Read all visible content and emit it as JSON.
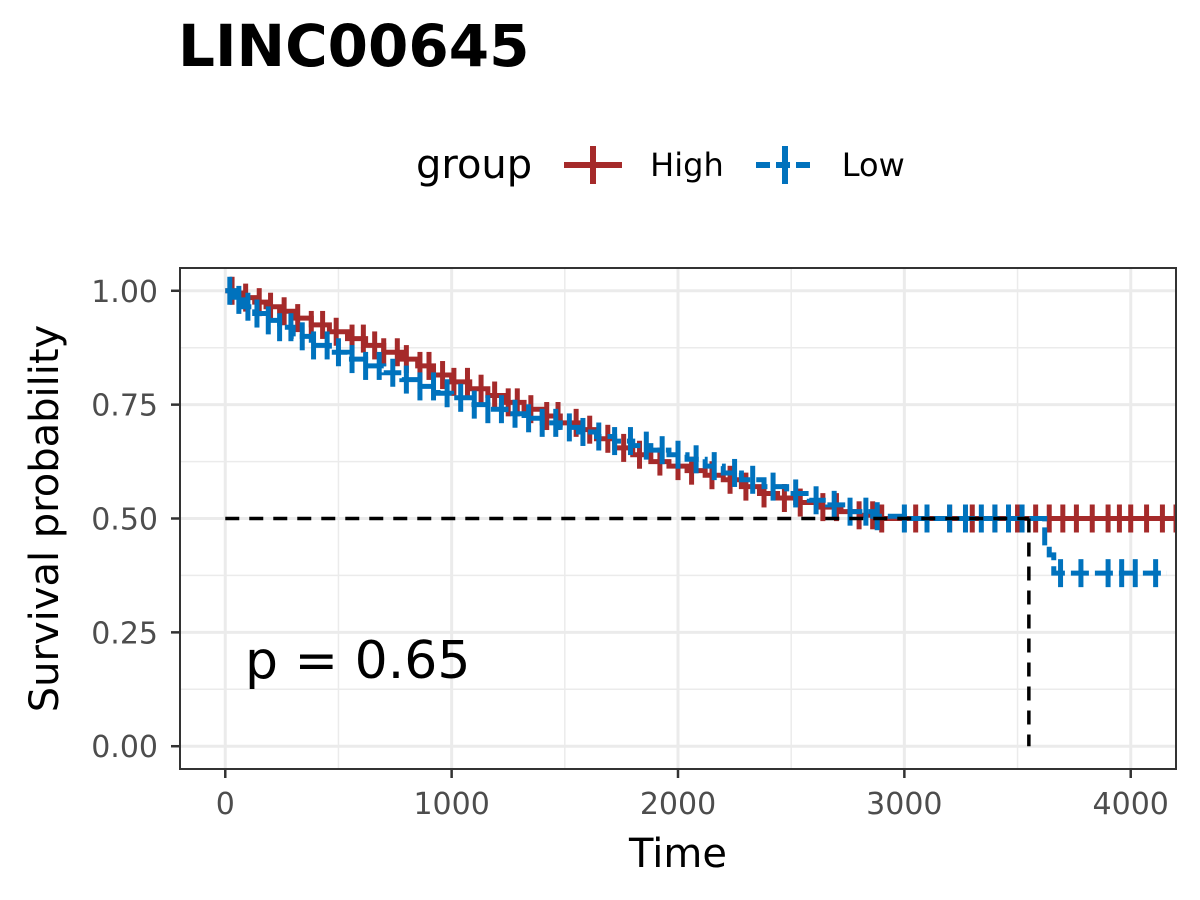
{
  "chart_data": {
    "type": "line",
    "subtype": "kaplan-meier",
    "title": "LINC00645",
    "xlabel": "Time",
    "ylabel": "Survival probability",
    "xlim": [
      -200,
      4200
    ],
    "ylim": [
      -0.05,
      1.05
    ],
    "x_ticks": [
      0,
      1000,
      2000,
      3000,
      4000
    ],
    "x_tick_labels": [
      "0",
      "1000",
      "2000",
      "3000",
      "4000"
    ],
    "y_ticks": [
      0,
      0.25,
      0.5,
      0.75,
      1.0
    ],
    "y_tick_labels": [
      "0.00",
      "0.25",
      "0.50",
      "0.75",
      "1.00"
    ],
    "grid": true,
    "legend": {
      "title": "group",
      "position": "top"
    },
    "annotation": "p = 0.65",
    "median_line": {
      "y": 0.5,
      "x": 3550
    },
    "series": [
      {
        "name": "High",
        "color": "#A52A2A",
        "x": [
          0,
          40,
          80,
          130,
          180,
          240,
          300,
          380,
          460,
          540,
          620,
          700,
          780,
          850,
          920,
          1000,
          1080,
          1160,
          1240,
          1320,
          1400,
          1480,
          1560,
          1640,
          1720,
          1800,
          1880,
          1960,
          2040,
          2120,
          2200,
          2280,
          2360,
          2440,
          2520,
          2620,
          2720,
          2800,
          2880,
          4200
        ],
        "y": [
          1.0,
          0.995,
          0.985,
          0.975,
          0.965,
          0.955,
          0.94,
          0.925,
          0.91,
          0.895,
          0.88,
          0.865,
          0.85,
          0.835,
          0.815,
          0.8,
          0.785,
          0.77,
          0.755,
          0.74,
          0.725,
          0.71,
          0.695,
          0.675,
          0.655,
          0.64,
          0.625,
          0.615,
          0.605,
          0.595,
          0.585,
          0.57,
          0.555,
          0.545,
          0.535,
          0.525,
          0.515,
          0.507,
          0.5,
          0.5
        ],
        "censor_x": [
          30,
          90,
          150,
          200,
          260,
          320,
          380,
          430,
          490,
          560,
          610,
          660,
          700,
          760,
          800,
          860,
          900,
          960,
          1010,
          1070,
          1130,
          1190,
          1250,
          1290,
          1350,
          1420,
          1470,
          1550,
          1610,
          1690,
          1760,
          1830,
          1920,
          2000,
          2060,
          2150,
          2230,
          2300,
          2380,
          2470,
          2540,
          2640,
          2700,
          2800,
          2860,
          2900,
          3050,
          3200,
          3300,
          3400,
          3500,
          3580,
          3640,
          3700,
          3760,
          3830,
          3900,
          3950,
          4000,
          4070,
          4140,
          4200
        ]
      },
      {
        "name": "Low",
        "color": "#0072BD",
        "x": [
          0,
          40,
          80,
          130,
          180,
          240,
          300,
          380,
          460,
          540,
          620,
          700,
          780,
          860,
          940,
          1000,
          1080,
          1160,
          1240,
          1320,
          1400,
          1480,
          1560,
          1640,
          1720,
          1800,
          1880,
          1960,
          2040,
          2120,
          2200,
          2280,
          2380,
          2480,
          2580,
          2660,
          2760,
          2860,
          3000,
          3550,
          3620,
          3640,
          3660,
          4160
        ],
        "y": [
          1.0,
          0.98,
          0.965,
          0.95,
          0.935,
          0.92,
          0.9,
          0.88,
          0.865,
          0.85,
          0.835,
          0.82,
          0.805,
          0.79,
          0.775,
          0.765,
          0.75,
          0.74,
          0.73,
          0.72,
          0.71,
          0.7,
          0.69,
          0.68,
          0.67,
          0.66,
          0.65,
          0.64,
          0.63,
          0.615,
          0.6,
          0.585,
          0.57,
          0.555,
          0.54,
          0.53,
          0.515,
          0.505,
          0.5,
          0.5,
          0.44,
          0.42,
          0.38,
          0.38
        ],
        "censor_x": [
          20,
          60,
          100,
          140,
          190,
          240,
          290,
          340,
          390,
          450,
          500,
          560,
          620,
          680,
          740,
          800,
          860,
          920,
          980,
          1040,
          1100,
          1160,
          1220,
          1280,
          1340,
          1400,
          1460,
          1520,
          1580,
          1650,
          1720,
          1790,
          1860,
          1930,
          2000,
          2080,
          2160,
          2250,
          2330,
          2420,
          2520,
          2610,
          2690,
          2760,
          2830,
          2880,
          3000,
          3100,
          3200,
          3270,
          3340,
          3400,
          3460,
          3520,
          3690,
          3780,
          3900,
          3960,
          4020,
          4110
        ]
      }
    ]
  }
}
